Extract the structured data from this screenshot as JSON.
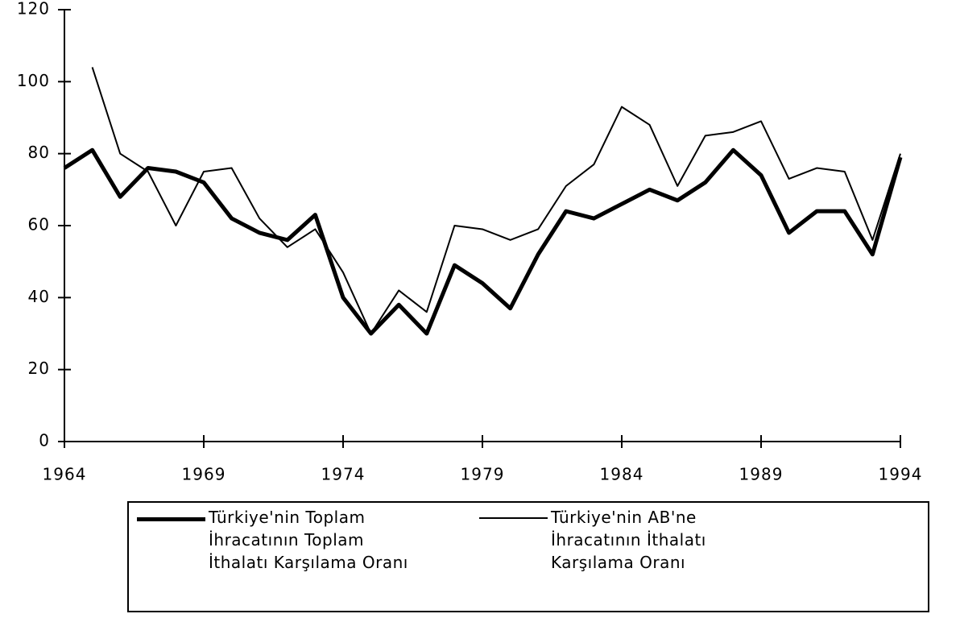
{
  "chart_data": {
    "type": "line",
    "x": [
      1964,
      1965,
      1966,
      1967,
      1968,
      1969,
      1970,
      1971,
      1972,
      1973,
      1974,
      1975,
      1976,
      1977,
      1978,
      1979,
      1980,
      1981,
      1982,
      1983,
      1984,
      1985,
      1986,
      1987,
      1988,
      1989,
      1990,
      1991,
      1992,
      1993,
      1994
    ],
    "series": [
      {
        "name": "Türkiye'nin Toplam İhracatının Toplam İthalatı Karşılama Oranı",
        "color": "#000000",
        "width": 5,
        "values": [
          76,
          81,
          68,
          76,
          75,
          72,
          62,
          58,
          56,
          63,
          40,
          30,
          38,
          30,
          49,
          44,
          37,
          52,
          64,
          62,
          66,
          70,
          67,
          72,
          81,
          74,
          58,
          64,
          64,
          52,
          79
        ]
      },
      {
        "name": "Türkiye'nin AB'ne İhracatının İthalatı Karşılama Oranı",
        "color": "#000000",
        "width": 2,
        "values": [
          null,
          104,
          80,
          75,
          60,
          75,
          76,
          62,
          54,
          59,
          47,
          30,
          42,
          36,
          60,
          59,
          56,
          59,
          71,
          77,
          93,
          88,
          71,
          85,
          86,
          89,
          73,
          76,
          75,
          56,
          80
        ]
      }
    ],
    "xlim": [
      1964,
      1994
    ],
    "xticks": [
      1964,
      1969,
      1974,
      1979,
      1984,
      1989,
      1994
    ],
    "ylim": [
      0,
      120
    ],
    "yticks": [
      0,
      20,
      40,
      60,
      80,
      100,
      120
    ]
  }
}
